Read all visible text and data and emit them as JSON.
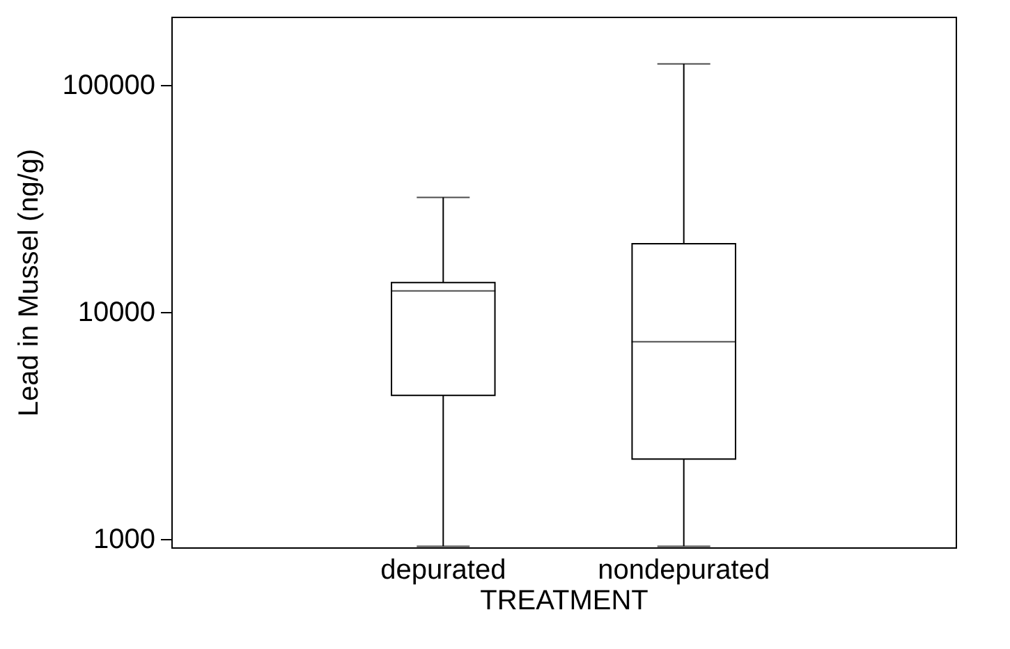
{
  "chart_data": {
    "type": "box",
    "xlabel": "TREATMENT",
    "ylabel": "Lead in Mussel (ng/g)",
    "categories": [
      "depurated",
      "nondepurated"
    ],
    "boxes": [
      {
        "low": 930,
        "q1": 4300,
        "median": 12400,
        "q3": 13500,
        "high": 32000
      },
      {
        "low": 930,
        "q1": 2250,
        "median": 7400,
        "q3": 20000,
        "high": 124000
      }
    ],
    "log": true,
    "ylim": [
      920,
      200000
    ],
    "yticks": [
      1000,
      10000,
      100000
    ]
  }
}
